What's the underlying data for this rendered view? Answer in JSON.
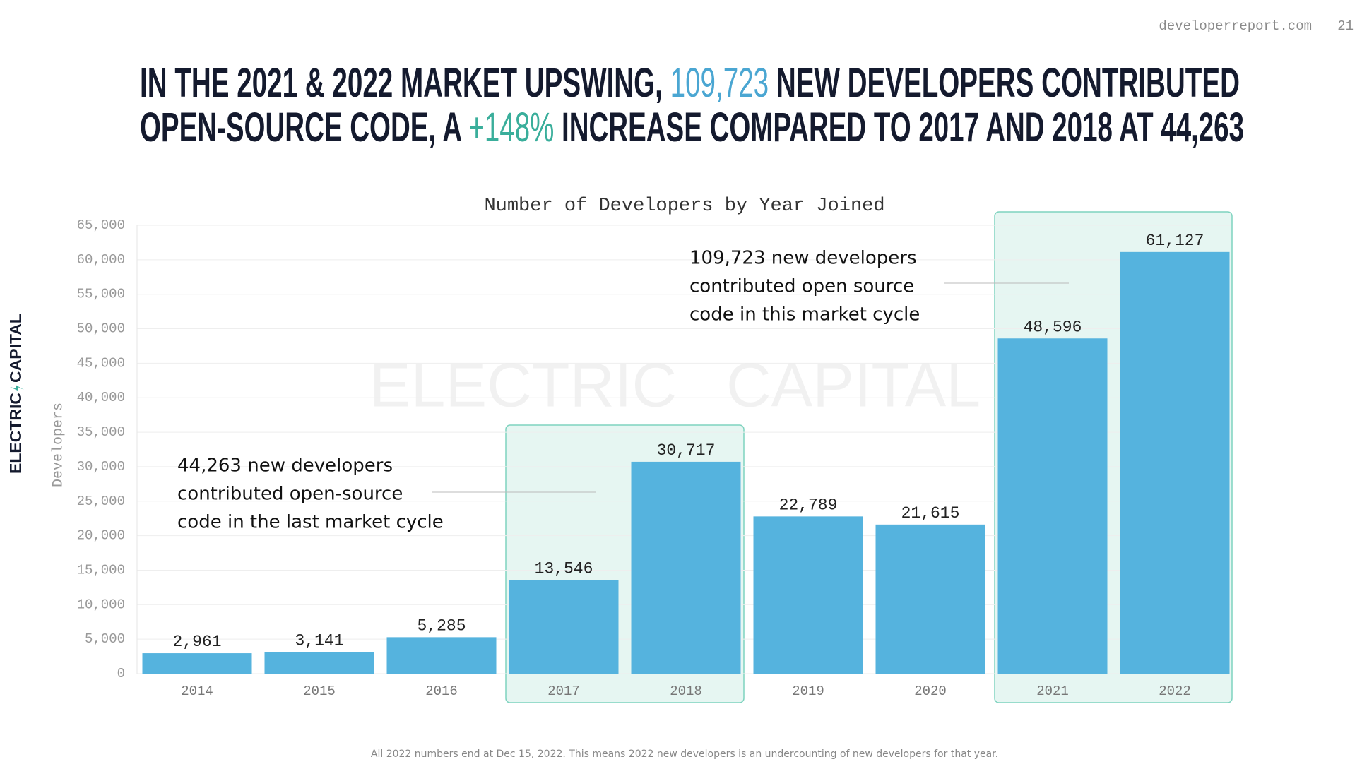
{
  "header": {
    "site": "developerreport.com",
    "page": "21"
  },
  "brand": {
    "left": "ELECTRIC",
    "right": "CAPITAL"
  },
  "headline": {
    "line1": [
      "IN THE 2021 & 2022 MARKET UPSWING, ",
      "109,723",
      " NEW DEVELOPERS CONTRIBUTED"
    ],
    "line2": [
      "OPEN-SOURCE CODE, A ",
      "+148%",
      " INCREASE COMPARED TO 2017 AND 2018 AT 44,263"
    ]
  },
  "chart_data": {
    "type": "bar",
    "title": "Number of Developers by Year Joined",
    "y_label": "Developers",
    "categories": [
      "2014",
      "2015",
      "2016",
      "2017",
      "2018",
      "2019",
      "2020",
      "2021",
      "2022"
    ],
    "values": [
      2961,
      3141,
      5285,
      13546,
      30717,
      22789,
      21615,
      48596,
      61127
    ],
    "value_labels": [
      "2,961",
      "3,141",
      "5,285",
      "13,546",
      "30,717",
      "22,789",
      "21,615",
      "48,596",
      "61,127"
    ],
    "color": "#55b3de",
    "ylim": [
      0,
      65000
    ],
    "yticks": [
      0,
      {
        "value": 5000,
        "label": "5,000"
      },
      {
        "value": 10000,
        "label": "10,000"
      },
      {
        "value": 15000,
        "label": "15,000"
      },
      {
        "value": 20000,
        "label": "20,000"
      },
      {
        "value": 25000,
        "label": "25,000"
      },
      {
        "value": 30000,
        "label": "30,000"
      },
      {
        "value": 35000,
        "label": "35,000"
      },
      {
        "value": 40000,
        "label": "40,000"
      },
      {
        "value": 45000,
        "label": "45,000"
      },
      {
        "value": 50000,
        "label": "50,000"
      },
      {
        "value": 55000,
        "label": "55,000"
      },
      {
        "value": 60000,
        "label": "60,000"
      },
      {
        "value": 65000,
        "label": "65,000"
      }
    ],
    "grid": true,
    "annotations": [
      [
        "44,263 new developers",
        "contributed open-source",
        "code in the last market cycle"
      ],
      [
        "109,723 new developers",
        "contributed open source",
        "code in this market cycle"
      ]
    ]
  },
  "footnote": "All 2022 numbers end at Dec 15, 2022. This means 2022 new developers is an undercounting of new developers for that year."
}
